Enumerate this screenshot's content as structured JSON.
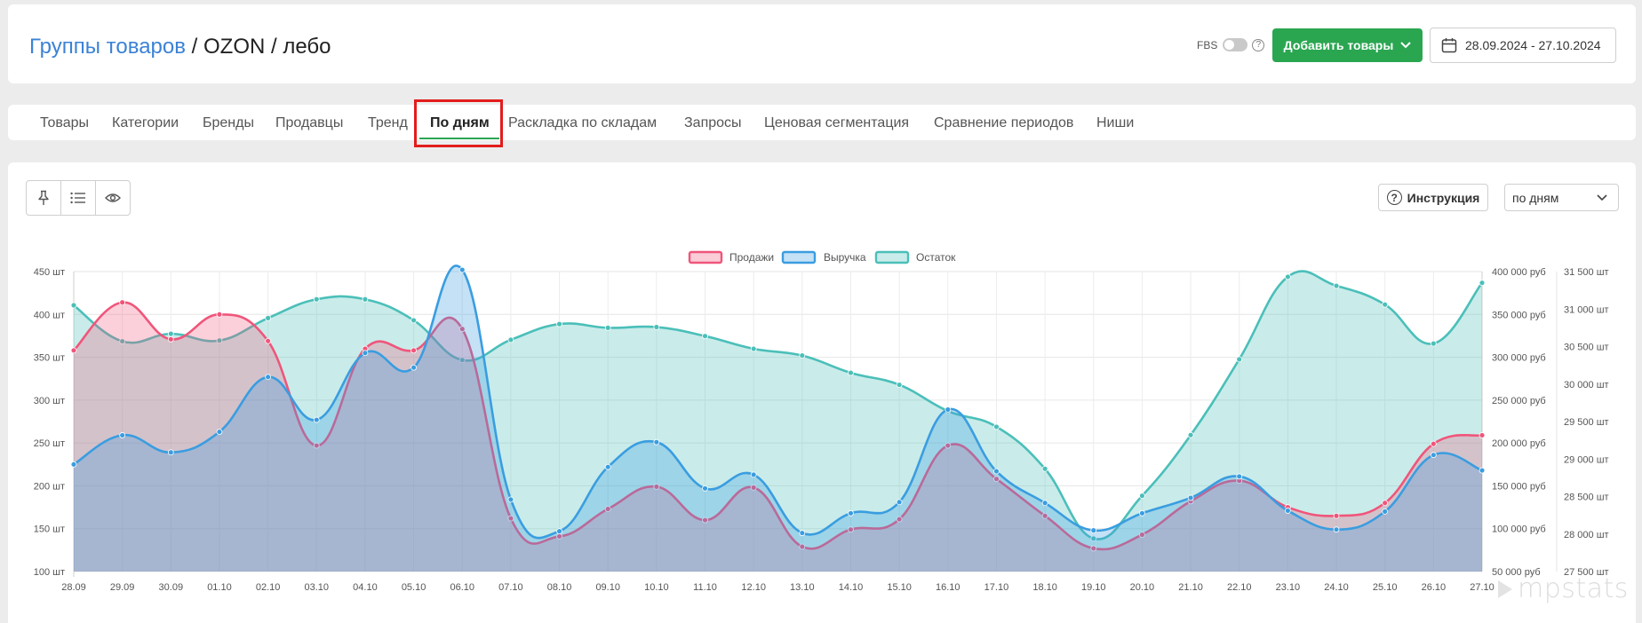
{
  "header": {
    "breadcrumb": {
      "link": "Группы товаров",
      "separator": " / ",
      "group": "OZON",
      "item": "лебо"
    },
    "fbs_label": "FBS",
    "fbs_help": "?",
    "add_button_label": "Добавить товары",
    "date_range": "28.09.2024 - 27.10.2024"
  },
  "tabs": [
    {
      "label": "Товары"
    },
    {
      "label": "Категории"
    },
    {
      "label": "Бренды"
    },
    {
      "label": "Продавцы"
    },
    {
      "label": "Тренд"
    },
    {
      "label": "По дням",
      "active": true
    },
    {
      "label": "Раскладка по складам"
    },
    {
      "label": "Запросы"
    },
    {
      "label": "Ценовая сегментация"
    },
    {
      "label": "Сравнение периодов"
    },
    {
      "label": "Ниши"
    }
  ],
  "toolbar": {
    "instruction_label": "Инструкция",
    "instruction_icon": "?",
    "period_select": "по дням"
  },
  "icons": {
    "pin": "pin-icon",
    "list": "list-icon",
    "eye": "eye-icon",
    "calendar": "calendar-icon",
    "chevron": "chevron-down-icon",
    "help": "question-circle-icon"
  },
  "colors": {
    "accent_green": "#2aa651",
    "link_blue": "#3b82d6",
    "highlight_red": "#e31c1c",
    "sales": "#f0557a",
    "revenue": "#3a9de0",
    "stock": "#4bbfb9"
  },
  "chart_data": {
    "type": "area",
    "x": [
      "28.09",
      "29.09",
      "30.09",
      "01.10",
      "02.10",
      "03.10",
      "04.10",
      "05.10",
      "06.10",
      "07.10",
      "08.10",
      "09.10",
      "10.10",
      "11.10",
      "12.10",
      "13.10",
      "14.10",
      "15.10",
      "16.10",
      "17.10",
      "18.10",
      "19.10",
      "20.10",
      "21.10",
      "22.10",
      "23.10",
      "24.10",
      "25.10",
      "26.10",
      "27.10"
    ],
    "series": [
      {
        "name": "Продажи",
        "axis": "left",
        "unit": "шт",
        "color": "#f0557a",
        "values": [
          358,
          414,
          371,
          400,
          369,
          247,
          360,
          358,
          383,
          162,
          141,
          173,
          199,
          160,
          198,
          129,
          149,
          161,
          247,
          208,
          165,
          127,
          143,
          182,
          206,
          175,
          165,
          180,
          249,
          259
        ]
      },
      {
        "name": "Выручка",
        "axis": "right",
        "unit": "руб",
        "color": "#3a9de0",
        "values": [
          175000,
          209000,
          189000,
          213000,
          277000,
          227000,
          305000,
          288000,
          402000,
          134000,
          97000,
          172000,
          201000,
          147000,
          163000,
          95000,
          118000,
          131000,
          239000,
          167000,
          130000,
          98000,
          118000,
          136000,
          161000,
          121000,
          99000,
          120000,
          186000,
          168000
        ]
      },
      {
        "name": "Остаток",
        "axis": "right2",
        "unit": "шт",
        "color": "#4bbfb9",
        "values": [
          31050,
          30570,
          30670,
          30580,
          30880,
          31130,
          31130,
          30850,
          30320,
          30590,
          30800,
          30750,
          30760,
          30640,
          30470,
          30380,
          30150,
          29990,
          29640,
          29430,
          28870,
          27940,
          28510,
          29320,
          30330,
          31430,
          31310,
          31060,
          30540,
          31350
        ]
      }
    ],
    "y_left": {
      "ticks": [
        "450 шт",
        "400 шт",
        "350 шт",
        "300 шт",
        "250 шт",
        "200 шт",
        "150 шт",
        "100 шт"
      ],
      "range": [
        100,
        450
      ]
    },
    "y_right": {
      "ticks": [
        "400 000 руб",
        "350 000 руб",
        "300 000 руб",
        "250 000 руб",
        "200 000 руб",
        "150 000 руб",
        "100 000 руб",
        "50 000 руб"
      ],
      "range": [
        50000,
        400000
      ]
    },
    "y_right2": {
      "ticks": [
        "31 500 шт",
        "31 000 шт",
        "30 500 шт",
        "30 000 шт",
        "29 500 шт",
        "29 000 шт",
        "28 500 шт",
        "28 000 шт",
        "27 500 шт"
      ],
      "range": [
        27500,
        31500
      ]
    },
    "legend_position": "top-center",
    "grid": true
  },
  "watermark": "mpstats"
}
